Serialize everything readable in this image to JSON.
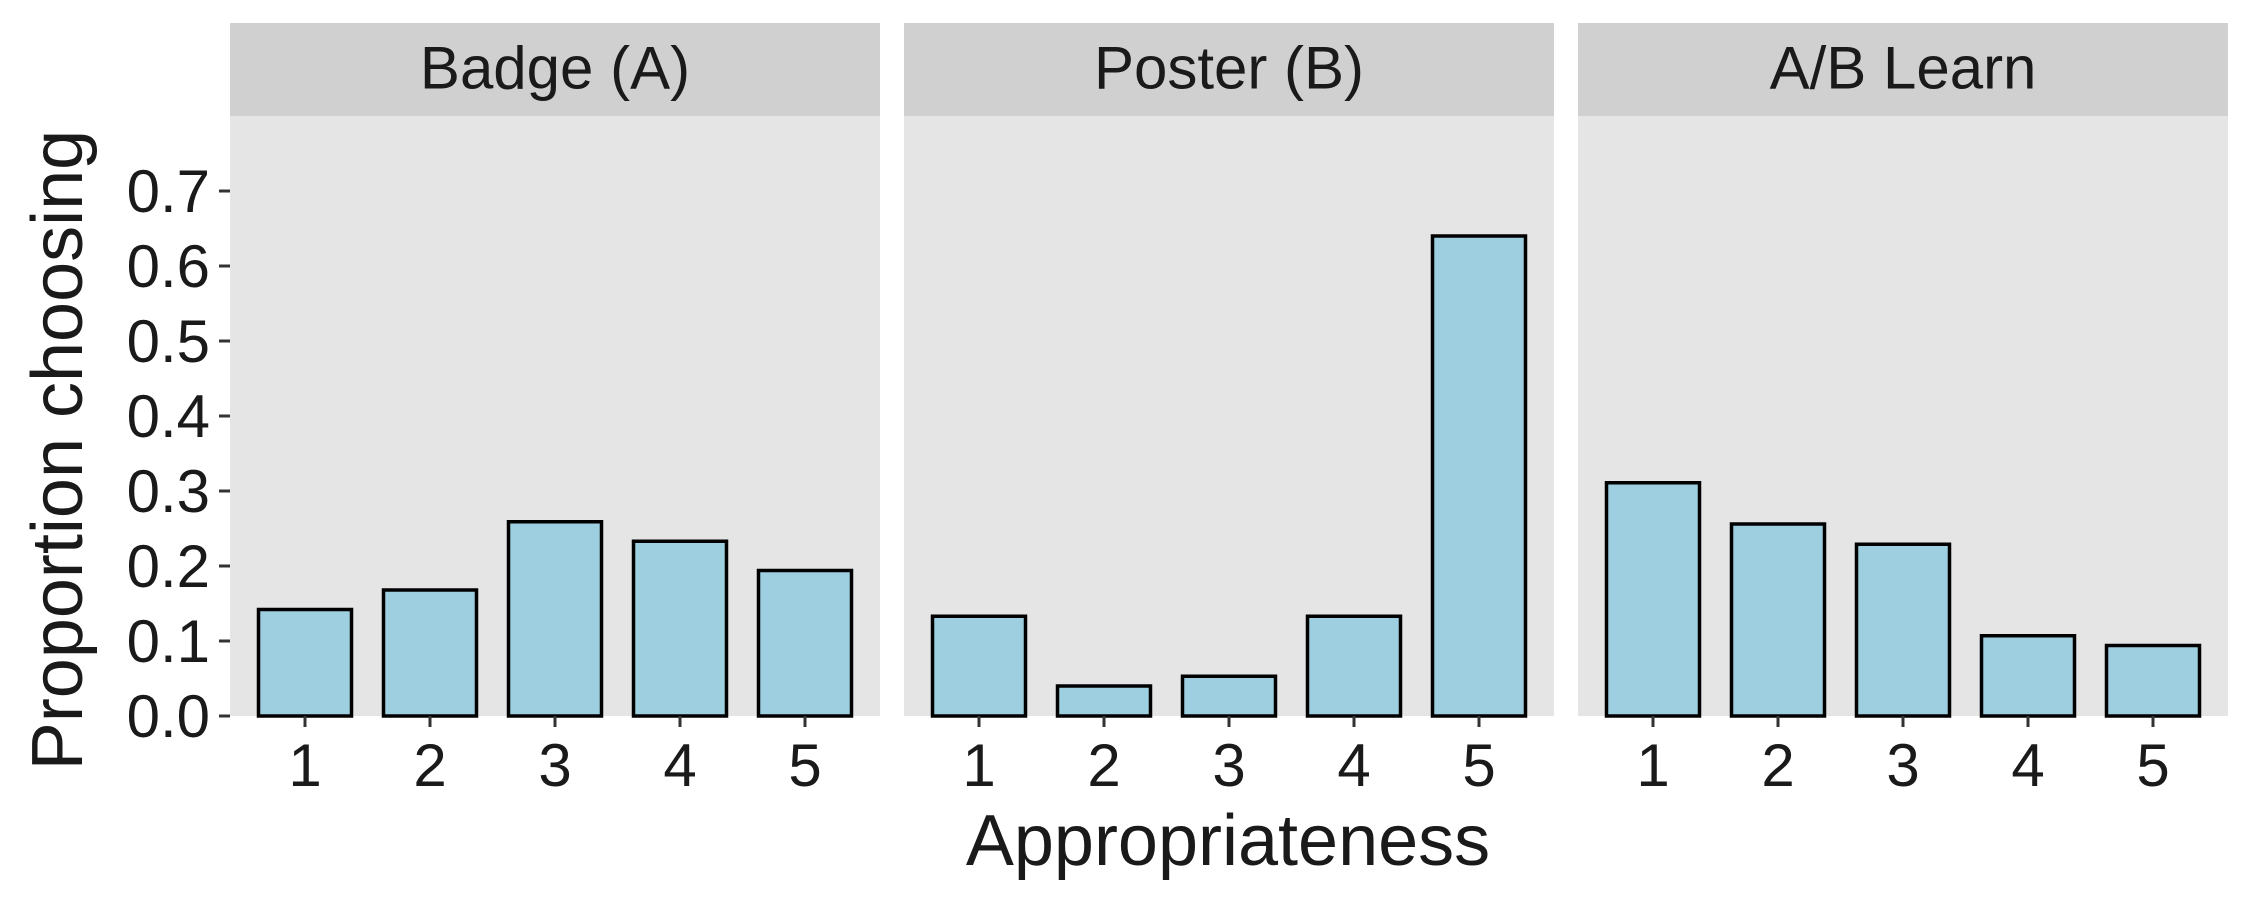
{
  "chart_data": {
    "type": "bar",
    "ylabel": "Proportion choosing",
    "xlabel": "Appropriateness",
    "categories": [
      "1",
      "2",
      "3",
      "4",
      "5"
    ],
    "ylim": [
      0,
      0.8
    ],
    "yticks": [
      "0.0",
      "0.1",
      "0.2",
      "0.3",
      "0.4",
      "0.5",
      "0.6",
      "0.7"
    ],
    "bar_fill": "#9ecfe0",
    "bar_stroke": "#000000",
    "panel_bg": "#e5e5e5",
    "strip_bg": "#d0d0d0",
    "grid": false,
    "facets": [
      {
        "title": "Badge (A)",
        "values": [
          0.142,
          0.168,
          0.259,
          0.233,
          0.194
        ]
      },
      {
        "title": "Poster (B)",
        "values": [
          0.133,
          0.04,
          0.053,
          0.133,
          0.64
        ]
      },
      {
        "title": "A/B Learn",
        "values": [
          0.311,
          0.256,
          0.229,
          0.107,
          0.094
        ]
      }
    ]
  }
}
